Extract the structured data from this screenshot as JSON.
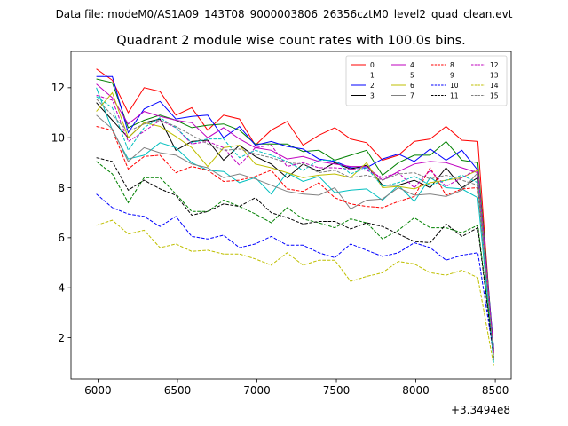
{
  "chart_data": {
    "type": "line",
    "suptitle": "Data file: modeM0/AS1A09_143T08_9000003806_26356cztM0_level2_quad_clean.evt",
    "title": "Quadrant 2 module wise count rates with 100.0s bins.",
    "xlabel": "",
    "ylabel": "",
    "x_offset_label": "+3.3494e8",
    "xlim": [
      5830,
      8600
    ],
    "ylim": [
      0.35,
      13.45
    ],
    "x_ticks": [
      6000,
      6500,
      7000,
      7500,
      8000,
      8500
    ],
    "y_ticks": [
      2,
      4,
      6,
      8,
      10,
      12
    ],
    "x": [
      5990,
      6090,
      6190,
      6290,
      6390,
      6490,
      6590,
      6690,
      6790,
      6890,
      6990,
      7090,
      7190,
      7290,
      7390,
      7490,
      7590,
      7690,
      7790,
      7890,
      7990,
      8090,
      8190,
      8290,
      8390,
      8490
    ],
    "legend_position": "top-right",
    "series": [
      {
        "name": "0",
        "color": "#ff0000",
        "dash": "solid",
        "values": [
          12.75,
          12.3,
          11.0,
          12.0,
          11.85,
          10.9,
          11.2,
          10.3,
          10.9,
          10.75,
          9.7,
          10.3,
          10.65,
          9.7,
          10.1,
          10.4,
          9.95,
          9.8,
          9.1,
          9.3,
          9.85,
          9.95,
          10.45,
          9.9,
          9.85,
          1.1
        ]
      },
      {
        "name": "1",
        "color": "#008000",
        "dash": "solid",
        "values": [
          12.35,
          12.2,
          10.4,
          10.7,
          10.9,
          10.7,
          10.4,
          10.5,
          10.55,
          10.3,
          9.75,
          9.75,
          9.75,
          9.45,
          9.5,
          9.1,
          9.3,
          9.5,
          8.5,
          9.0,
          9.3,
          9.3,
          9.85,
          9.1,
          9.0,
          1.5
        ]
      },
      {
        "name": "2",
        "color": "#0000ff",
        "dash": "solid",
        "values": [
          12.45,
          12.45,
          10.2,
          11.15,
          11.45,
          10.75,
          10.85,
          10.9,
          10.0,
          10.45,
          9.7,
          9.85,
          9.65,
          9.55,
          9.15,
          9.05,
          8.8,
          8.8,
          9.15,
          9.35,
          9.05,
          9.55,
          9.1,
          9.5,
          8.7,
          1.55
        ]
      },
      {
        "name": "3",
        "color": "#000000",
        "dash": "solid",
        "values": [
          11.4,
          10.7,
          10.0,
          10.6,
          10.75,
          9.5,
          9.85,
          9.9,
          9.1,
          9.7,
          9.25,
          8.95,
          8.4,
          8.95,
          8.65,
          9.0,
          8.75,
          8.9,
          8.1,
          8.1,
          8.3,
          8.0,
          8.8,
          8.0,
          8.4,
          1.45
        ]
      },
      {
        "name": "4",
        "color": "#bf00bf",
        "dash": "solid",
        "values": [
          12.15,
          11.6,
          10.55,
          11.05,
          10.85,
          10.7,
          10.6,
          10.0,
          10.4,
          9.95,
          9.6,
          9.5,
          9.15,
          9.25,
          9.05,
          8.95,
          8.85,
          8.85,
          8.3,
          8.65,
          8.95,
          9.05,
          9.0,
          8.8,
          8.6,
          1.4
        ]
      },
      {
        "name": "5",
        "color": "#00bfbf",
        "dash": "solid",
        "values": [
          12.0,
          10.3,
          9.15,
          9.3,
          9.8,
          9.6,
          9.0,
          8.7,
          8.65,
          8.2,
          8.4,
          7.75,
          8.6,
          8.25,
          8.45,
          7.8,
          7.9,
          7.95,
          7.5,
          8.1,
          7.45,
          8.4,
          8.0,
          7.95,
          7.6,
          1.0
        ]
      },
      {
        "name": "6",
        "color": "#bfbf00",
        "dash": "solid",
        "values": [
          11.05,
          11.8,
          10.0,
          10.6,
          10.45,
          10.05,
          9.6,
          8.85,
          9.6,
          9.7,
          8.95,
          8.8,
          8.6,
          8.4,
          8.5,
          8.55,
          8.4,
          9.0,
          8.0,
          8.05,
          7.95,
          8.2,
          8.3,
          8.4,
          8.7,
          1.3
        ]
      },
      {
        "name": "7",
        "color": "#808080",
        "dash": "solid",
        "values": [
          10.9,
          10.35,
          9.05,
          9.6,
          9.4,
          9.3,
          8.95,
          8.8,
          8.4,
          8.55,
          8.35,
          8.1,
          7.85,
          7.75,
          7.7,
          8.0,
          7.15,
          7.5,
          7.55,
          8.0,
          7.7,
          7.75,
          7.65,
          7.9,
          8.6,
          1.2
        ]
      },
      {
        "name": "8",
        "color": "#ff0000",
        "dash": "dashed",
        "values": [
          10.45,
          10.3,
          8.75,
          9.25,
          9.3,
          8.6,
          8.85,
          8.7,
          8.25,
          8.3,
          8.45,
          8.7,
          7.95,
          7.85,
          8.2,
          7.6,
          7.35,
          7.25,
          7.2,
          7.45,
          7.65,
          8.8,
          7.7,
          7.95,
          8.0,
          1.35
        ]
      },
      {
        "name": "9",
        "color": "#008000",
        "dash": "dashed",
        "values": [
          9.05,
          8.55,
          7.4,
          8.4,
          8.4,
          7.75,
          7.05,
          7.05,
          7.5,
          7.25,
          6.95,
          6.6,
          7.2,
          6.75,
          6.6,
          6.4,
          6.75,
          6.6,
          5.95,
          6.3,
          6.8,
          6.4,
          6.4,
          6.2,
          6.5,
          1.35
        ]
      },
      {
        "name": "10",
        "color": "#0000ff",
        "dash": "dashed",
        "values": [
          7.75,
          7.2,
          6.95,
          6.85,
          6.45,
          6.85,
          6.05,
          5.95,
          6.1,
          5.6,
          5.75,
          6.05,
          5.7,
          5.7,
          5.4,
          5.2,
          5.75,
          5.5,
          5.25,
          5.4,
          5.8,
          5.6,
          5.1,
          5.3,
          5.4,
          1.3
        ]
      },
      {
        "name": "11",
        "color": "#000000",
        "dash": "dashed",
        "values": [
          9.2,
          9.05,
          7.9,
          8.3,
          7.95,
          7.7,
          6.9,
          7.05,
          7.35,
          7.25,
          7.6,
          7.0,
          6.8,
          6.55,
          6.65,
          6.65,
          6.35,
          6.6,
          6.45,
          6.15,
          5.85,
          5.8,
          6.55,
          6.05,
          6.4,
          1.2
        ]
      },
      {
        "name": "12",
        "color": "#bf00bf",
        "dash": "dashed",
        "values": [
          11.7,
          11.5,
          9.85,
          10.25,
          10.7,
          10.4,
          9.75,
          9.85,
          9.6,
          8.9,
          9.6,
          9.7,
          8.85,
          9.0,
          8.8,
          8.8,
          8.75,
          8.7,
          8.4,
          8.6,
          8.0,
          8.7,
          8.05,
          8.4,
          8.75,
          1.4
        ]
      },
      {
        "name": "13",
        "color": "#00bfbf",
        "dash": "dashed",
        "values": [
          11.65,
          11.2,
          9.5,
          10.4,
          10.8,
          10.4,
          9.8,
          9.95,
          9.95,
          9.2,
          9.5,
          9.3,
          9.05,
          8.7,
          9.1,
          9.1,
          8.55,
          8.8,
          8.05,
          8.2,
          8.45,
          8.1,
          8.3,
          8.5,
          8.2,
          1.1
        ]
      },
      {
        "name": "14",
        "color": "#bfbf00",
        "dash": "dashed",
        "values": [
          6.5,
          6.7,
          6.15,
          6.3,
          5.6,
          5.75,
          5.45,
          5.5,
          5.35,
          5.35,
          5.15,
          4.9,
          5.4,
          4.9,
          5.1,
          5.1,
          4.25,
          4.45,
          4.6,
          5.05,
          4.95,
          4.6,
          4.5,
          4.7,
          4.4,
          0.9
        ]
      },
      {
        "name": "15",
        "color": "#808080",
        "dash": "dashed",
        "values": [
          11.55,
          10.9,
          10.25,
          10.55,
          10.7,
          10.45,
          10.1,
          9.75,
          9.5,
          9.55,
          9.35,
          9.2,
          9.0,
          8.95,
          8.6,
          8.7,
          8.4,
          8.5,
          8.3,
          8.55,
          8.6,
          8.35,
          8.5,
          8.3,
          8.1,
          1.2
        ]
      }
    ]
  }
}
